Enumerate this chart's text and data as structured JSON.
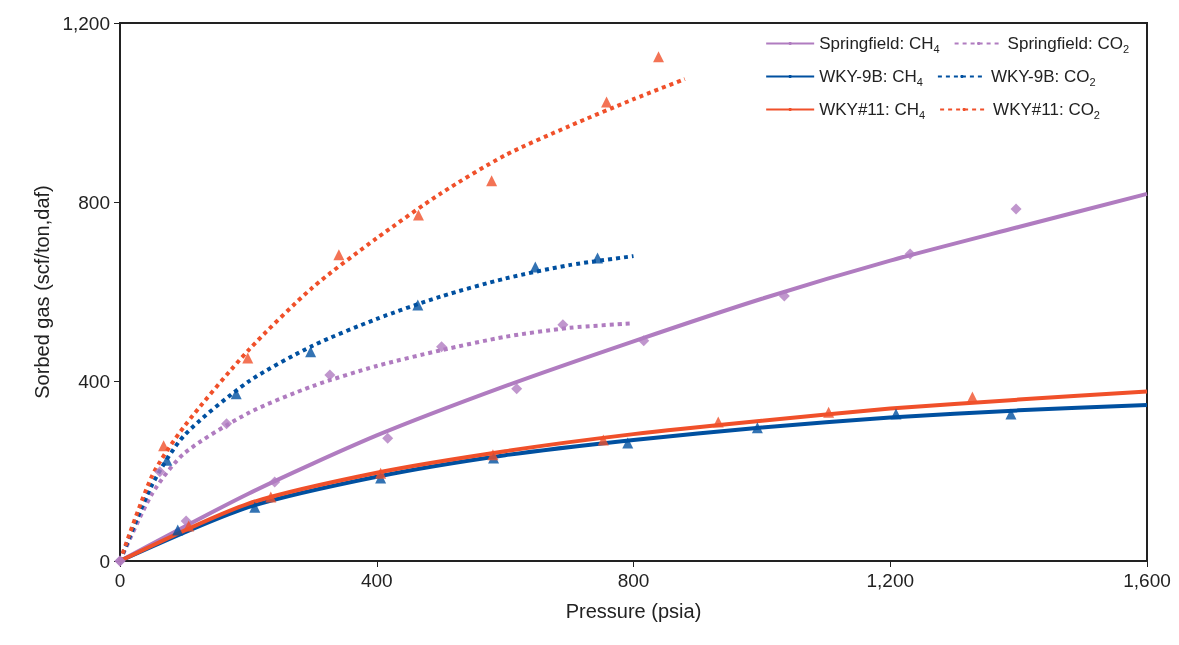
{
  "chart_data": {
    "type": "line",
    "xlabel": "Pressure (psia)",
    "ylabel": "Sorbed gas (scf/ton,daf)",
    "xlim": [
      0,
      1600
    ],
    "xticks": [
      0,
      400,
      800,
      {
        "value": 1200,
        "label": "1,200"
      },
      {
        "value": 1600,
        "label": "1,600"
      }
    ],
    "ylim": [
      0,
      1200
    ],
    "yticks": [
      0,
      400,
      800,
      {
        "value": 1200,
        "label": "1,200"
      }
    ],
    "grid": false,
    "legend": "top right",
    "marker": "none",
    "series": [
      {
        "name": "Springfield: CH$_{4}$",
        "color": "#b07cc0",
        "line_style": "solid",
        "x": [
          0,
          200,
          400,
          600,
          800,
          1000,
          1200,
          1400,
          1600
        ],
        "values": [
          0,
          150,
          280,
          390,
          490,
          585,
          670,
          745,
          819
        ]
      },
      {
        "name": "Springfield: CO$_{2}$",
        "color": "#b07cc0",
        "line_style": "dashed",
        "x": [
          0,
          50,
          100,
          200,
          300,
          400,
          500,
          600,
          700,
          800
        ],
        "values": [
          0,
          150,
          240,
          330,
          390,
          435,
          470,
          500,
          520,
          530
        ]
      },
      {
        "name": "WKY-9B: CH$_{4}$",
        "color": "#0050a0",
        "line_style": "solid",
        "x": [
          0,
          200,
          400,
          600,
          800,
          1000,
          1200,
          1400,
          1600
        ],
        "values": [
          0,
          120,
          188,
          236,
          270,
          298,
          320,
          336,
          348
        ]
      },
      {
        "name": "WKY-9B: CO$_{2}$",
        "color": "#0050a0",
        "line_style": "dashed",
        "x": [
          0,
          50,
          100,
          200,
          300,
          400,
          500,
          600,
          700,
          800
        ],
        "values": [
          0,
          170,
          280,
          400,
          480,
          540,
          590,
          630,
          660,
          680
        ]
      },
      {
        "name": "WKY#11: CH$_{4}$",
        "color": "#f0502a",
        "line_style": "solid",
        "x": [
          0,
          200,
          400,
          600,
          800,
          1000,
          1200,
          1400,
          1600
        ],
        "values": [
          0,
          128,
          197,
          245,
          283,
          313,
          340,
          360,
          378
        ]
      },
      {
        "name": "WKY#11: CO$_{2}$",
        "color": "#f0502a",
        "line_style": "dashed",
        "x": [
          0,
          50,
          100,
          200,
          300,
          400,
          500,
          600,
          700,
          800,
          880
        ],
        "values": [
          0,
          190,
          300,
          470,
          610,
          720,
          820,
          905,
          970,
          1030,
          1075
        ]
      },
      {
        "type": "scatter",
        "color": "#b07cc0",
        "marker": "diamond",
        "x": [
          0,
          103,
          241,
          417,
          618,
          816,
          1035,
          1231,
          1396
        ],
        "values": [
          0,
          89,
          176,
          274,
          384,
          491,
          591,
          685,
          785
        ]
      },
      {
        "type": "scatter",
        "color": "#b07cc0",
        "marker": "diamond",
        "x": [
          0,
          62,
          166,
          327,
          501,
          690
        ],
        "values": [
          0,
          199,
          306,
          415,
          478,
          527
        ]
      },
      {
        "type": "scatter",
        "color": "#0050a0",
        "marker": "triangle",
        "x": [
          90,
          210,
          406,
          582,
          791,
          993,
          1209,
          1388
        ],
        "values": [
          69,
          120,
          185,
          230,
          263,
          297,
          328,
          328
        ]
      },
      {
        "type": "scatter",
        "color": "#0050a0",
        "marker": "triangle",
        "x": [
          73,
          181,
          297,
          464,
          647,
          744
        ],
        "values": [
          225,
          373,
          467,
          571,
          656,
          676
        ]
      },
      {
        "type": "scatter",
        "color": "#f0502a",
        "marker": "triangle",
        "x": [
          107,
          235,
          406,
          581,
          753,
          932,
          1104,
          1328
        ],
        "values": [
          78,
          143,
          196,
          237,
          270,
          310,
          332,
          366
        ]
      },
      {
        "type": "scatter",
        "color": "#f0502a",
        "marker": "triangle",
        "x": [
          68,
          199,
          341,
          465,
          579,
          758,
          839
        ],
        "values": [
          257,
          453,
          683,
          772,
          848,
          1024,
          1125
        ]
      }
    ]
  }
}
